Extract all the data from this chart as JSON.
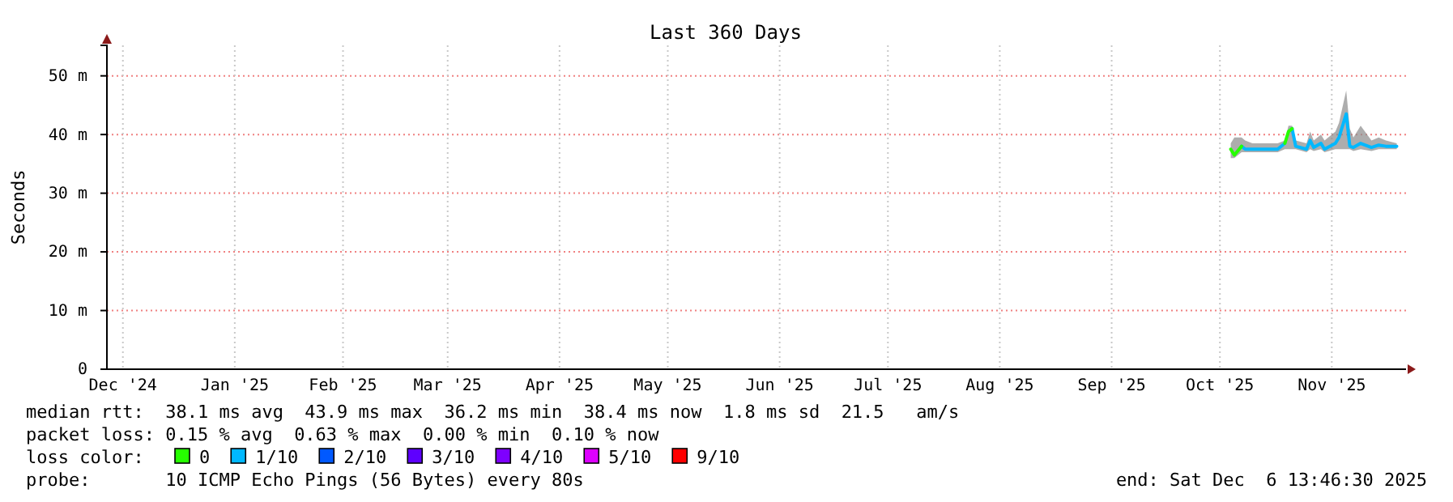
{
  "chart_data": {
    "type": "line",
    "title": "Last 360 Days",
    "ylabel": "Seconds",
    "legend_title": "loss color:",
    "legend": "bottom",
    "grid": true,
    "xlim": [
      "2024-12-11T13:46",
      "2025-12-06T13:46"
    ],
    "xticks": [
      {
        "value": "2024-12-16",
        "label": "Dec '24"
      },
      {
        "value": "2025-01-16",
        "label": "Jan '25"
      },
      {
        "value": "2025-02-15",
        "label": "Feb '25"
      },
      {
        "value": "2025-03-16",
        "label": "Mar '25"
      },
      {
        "value": "2025-04-16",
        "label": "Apr '25"
      },
      {
        "value": "2025-05-16",
        "label": "May '25"
      },
      {
        "value": "2025-06-16",
        "label": "Jun '25"
      },
      {
        "value": "2025-07-16",
        "label": "Jul '25"
      },
      {
        "value": "2025-08-16",
        "label": "Aug '25"
      },
      {
        "value": "2025-09-16",
        "label": "Sep '25"
      },
      {
        "value": "2025-10-16",
        "label": "Oct '25"
      },
      {
        "value": "2025-11-16",
        "label": "Nov '25"
      }
    ],
    "ylim": [
      0,
      55.2
    ],
    "yticks": [
      0,
      {
        "value": 10,
        "label": "10 m"
      },
      {
        "value": 20,
        "label": "20 m"
      },
      {
        "value": 30,
        "label": "30 m"
      },
      {
        "value": 40,
        "label": "40 m"
      },
      {
        "value": 50,
        "label": "50 m"
      }
    ],
    "series": [
      {
        "name": "0",
        "color": "#26ff00",
        "x": [
          "2025-10-19",
          "2025-10-20",
          "2025-10-22",
          "2025-10-23",
          "2025-11-03",
          "2025-11-04",
          "2025-11-05"
        ],
        "values": [
          37.5,
          36.5,
          38,
          null,
          38.5,
          40.5,
          41
        ]
      },
      {
        "name": "1/10",
        "color": "#00b8ff",
        "x": [
          "2025-10-19",
          "2025-10-20",
          "2025-10-22",
          "2025-10-23",
          "2025-10-25",
          "2025-11-01",
          "2025-11-03",
          "2025-11-04",
          "2025-11-05",
          "2025-11-06",
          "2025-11-09",
          "2025-11-10",
          "2025-11-11",
          "2025-11-13",
          "2025-11-14",
          "2025-11-17",
          "2025-11-18",
          "2025-11-20",
          "2025-11-21",
          "2025-11-22",
          "2025-11-24",
          "2025-11-27",
          "2025-11-29",
          "2025-12-01",
          "2025-12-04"
        ],
        "values": [
          null,
          null,
          38,
          37.5,
          37.5,
          37.5,
          38.5,
          null,
          41,
          38,
          37.5,
          39,
          37.8,
          38.5,
          37.5,
          38.5,
          39.5,
          43.5,
          38,
          37.8,
          38.5,
          37.8,
          38.2,
          38,
          38
        ],
        "lower": [
          36,
          36,
          37,
          37,
          37,
          37,
          37.5,
          37.5,
          37.5,
          37.5,
          37,
          37.5,
          37.2,
          37.5,
          37,
          37.5,
          37.5,
          37.5,
          37.5,
          37.2,
          37.5,
          37.2,
          37.5,
          37.5,
          37.5
        ],
        "upper": [
          38.5,
          39.5,
          39.5,
          39,
          38.5,
          38.5,
          39,
          41.5,
          41.5,
          39,
          38.5,
          40.5,
          39,
          40,
          39,
          40.5,
          42,
          47.5,
          41,
          39.5,
          41.5,
          39,
          39.5,
          39,
          38.5
        ]
      },
      {
        "name": "2/10",
        "color": "#0059ff"
      },
      {
        "name": "3/10",
        "color": "#5e00ff"
      },
      {
        "name": "4/10",
        "color": "#7e00ff"
      },
      {
        "name": "5/10",
        "color": "#dd00ff"
      },
      {
        "name": "9/10",
        "color": "#ff0000"
      }
    ],
    "annotations": [
      "median rtt:  38.1 ms avg  43.9 ms max  36.2 ms min  38.4 ms now  1.8 ms sd  21.5   am/s",
      "packet loss: 0.15 % avg  0.63 % max  0.00 % min  0.10 % now",
      "probe:       10 ICMP Echo Pings (56 Bytes) every 80s",
      "end: Sat Dec  6 13:46:30 2025"
    ]
  }
}
